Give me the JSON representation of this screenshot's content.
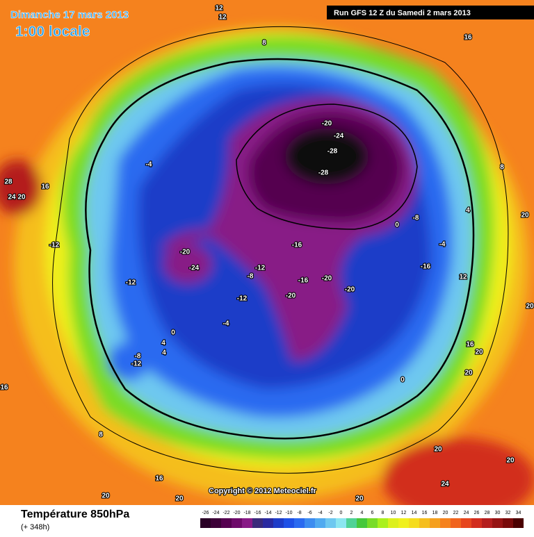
{
  "header": {
    "date": "Dimanche 17 mars 2013",
    "time": "1:00 locale",
    "run": "Run GFS 12 Z du Samedi 2 mars 2013",
    "copyright": "Copyright © 2012 Meteociel.fr"
  },
  "footer": {
    "title": "Température 850hPa",
    "lead": "(+ 348h)"
  },
  "colorbar": {
    "labels": [
      -26,
      -24,
      -22,
      -20,
      -18,
      -16,
      -14,
      -12,
      -10,
      -8,
      -6,
      -4,
      -2,
      0,
      2,
      4,
      6,
      8,
      10,
      12,
      14,
      16,
      18,
      20,
      22,
      24,
      26,
      28,
      30,
      32,
      34
    ],
    "colors": [
      "#2a0026",
      "#3c0038",
      "#550050",
      "#6e0a6a",
      "#881a86",
      "#3a2a7a",
      "#2a2aa0",
      "#1e3cc8",
      "#1e50e6",
      "#2a6af0",
      "#3c8cf0",
      "#50aaf0",
      "#6ec8f0",
      "#8ce6f0",
      "#50d296",
      "#46c83c",
      "#78dc28",
      "#aaf01e",
      "#dcf01e",
      "#f0f01e",
      "#f5dc1e",
      "#f5be1e",
      "#f5a01e",
      "#f5821e",
      "#f0641e",
      "#e6461e",
      "#d22d1e",
      "#b41e1e",
      "#961414",
      "#780a0a",
      "#4a0000"
    ]
  },
  "contour_labels": [
    -20,
    -24,
    -28,
    -28,
    -16,
    -20,
    -24,
    -12,
    -8,
    -16,
    -20,
    -20,
    -20,
    -12,
    -4,
    -12,
    -4,
    0,
    -8,
    -4,
    -16,
    12,
    16,
    20,
    20,
    0,
    -8,
    -12,
    4,
    4,
    0,
    -12,
    16,
    28,
    24,
    20,
    16,
    8,
    16,
    20,
    20,
    20,
    24,
    20,
    20,
    20,
    8,
    4,
    16,
    8,
    12,
    12,
    20
  ]
}
